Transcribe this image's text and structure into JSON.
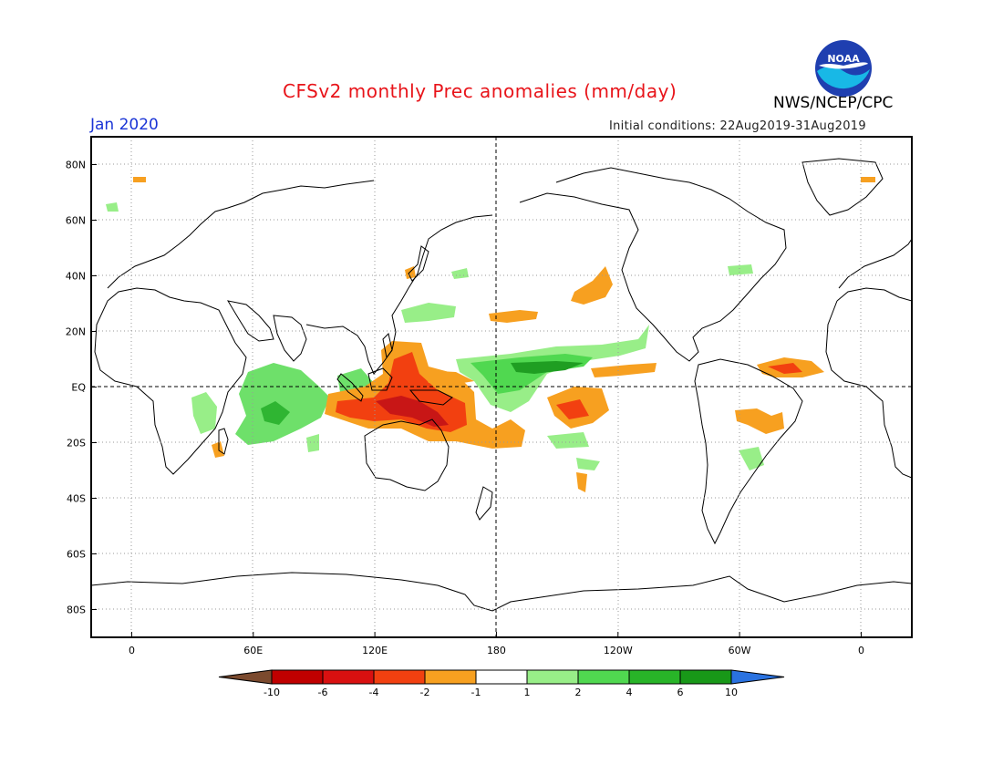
{
  "header": {
    "title": "CFSv2 monthly Prec anomalies (mm/day)",
    "month": "Jan 2020",
    "initial_conditions": "Initial conditions: 22Aug2019-31Aug2019",
    "agency": "NWS/NCEP/CPC",
    "logo_text": "NOAA"
  },
  "axes": {
    "lat_labels": [
      {
        "lat": 80,
        "text": "80N"
      },
      {
        "lat": 60,
        "text": "60N"
      },
      {
        "lat": 40,
        "text": "40N"
      },
      {
        "lat": 20,
        "text": "20N"
      },
      {
        "lat": 0,
        "text": "EQ"
      },
      {
        "lat": -20,
        "text": "20S"
      },
      {
        "lat": -40,
        "text": "40S"
      },
      {
        "lat": -60,
        "text": "60S"
      },
      {
        "lat": -80,
        "text": "80S"
      }
    ],
    "lon_labels": [
      {
        "lon": 0,
        "text": "0"
      },
      {
        "lon": 60,
        "text": "60E"
      },
      {
        "lon": 120,
        "text": "120E"
      },
      {
        "lon": 180,
        "text": "180"
      },
      {
        "lon": 240,
        "text": "120W"
      },
      {
        "lon": 300,
        "text": "60W"
      },
      {
        "lon": 360,
        "text": "0"
      }
    ],
    "lon_range": [
      -20,
      385
    ],
    "lat_range": [
      -90,
      90
    ]
  },
  "colorbar": {
    "labels": [
      "-10",
      "-6",
      "-4",
      "-2",
      "-1",
      "1",
      "2",
      "4",
      "6",
      "10"
    ],
    "colors": [
      "#7b4a2e",
      "#c00000",
      "#d91010",
      "#f24010",
      "#f7a020",
      "#ffffff",
      "#98ee88",
      "#50d850",
      "#28b428",
      "#189818",
      "#2a72e0"
    ]
  },
  "anomaly_regions": [
    {
      "name": "maritime-continent-deficit",
      "color": "#e8341a",
      "lon": 148,
      "lat": -10
    },
    {
      "name": "indian-ocean-surplus",
      "color": "#50d850",
      "lon": 75,
      "lat": -10
    },
    {
      "name": "central-pacific-surplus",
      "color": "#28b428",
      "lon": 195,
      "lat": 5
    },
    {
      "name": "amazon-deficit",
      "color": "#e8341a",
      "lon": 315,
      "lat": 5
    }
  ]
}
